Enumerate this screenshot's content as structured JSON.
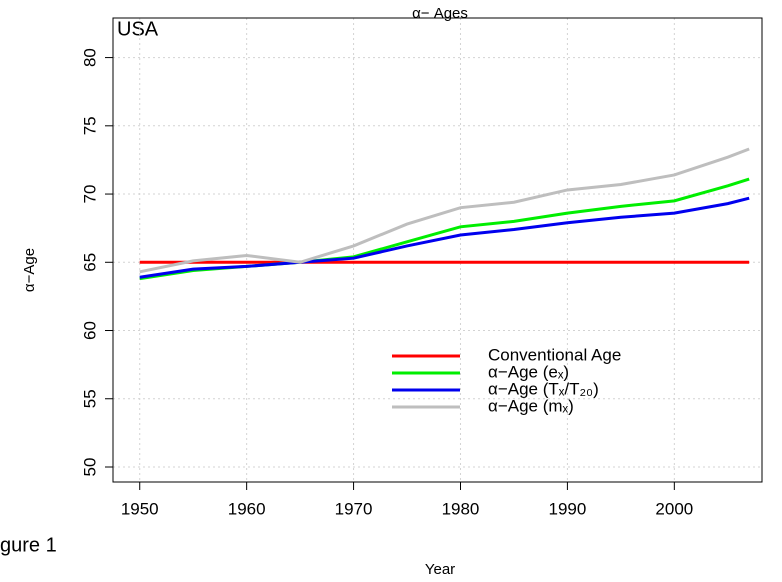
{
  "chart_data": {
    "type": "line",
    "title": "α− Ages",
    "subtitle": "USA",
    "caption": "gure 1",
    "xlabel": "Year",
    "ylabel": "α−Age",
    "x": [
      1950,
      1955,
      1960,
      1965,
      1970,
      1975,
      1980,
      1985,
      1990,
      1995,
      2000,
      2005,
      2007
    ],
    "series": [
      {
        "name": "Conventional Age",
        "color": "#ff0000",
        "values": [
          65,
          65,
          65,
          65,
          65,
          65,
          65,
          65,
          65,
          65,
          65,
          65,
          65
        ]
      },
      {
        "name": "α−Age (eₓ)",
        "color": "#00ee00",
        "values": [
          63.8,
          64.4,
          64.7,
          65.0,
          65.4,
          66.5,
          67.6,
          68.0,
          68.6,
          69.1,
          69.5,
          70.6,
          71.1
        ]
      },
      {
        "name": "α−Age (Tₓ/T₂₀)",
        "color": "#0000ee",
        "values": [
          63.9,
          64.5,
          64.7,
          65.0,
          65.3,
          66.2,
          67.0,
          67.4,
          67.9,
          68.3,
          68.6,
          69.3,
          69.7
        ]
      },
      {
        "name": "α−Age (mₓ)",
        "color": "#bebebe",
        "values": [
          64.3,
          65.1,
          65.5,
          65.0,
          66.2,
          67.8,
          69.0,
          69.4,
          70.3,
          70.7,
          71.4,
          72.7,
          73.3
        ]
      }
    ],
    "xlim": [
      1947.5,
      2008.2
    ],
    "xticks": [
      1950,
      1960,
      1970,
      1980,
      1990,
      2000
    ],
    "ylim": [
      48.9,
      82.9
    ],
    "yticks": [
      50,
      55,
      60,
      65,
      70,
      75,
      80
    ],
    "grid": true
  }
}
